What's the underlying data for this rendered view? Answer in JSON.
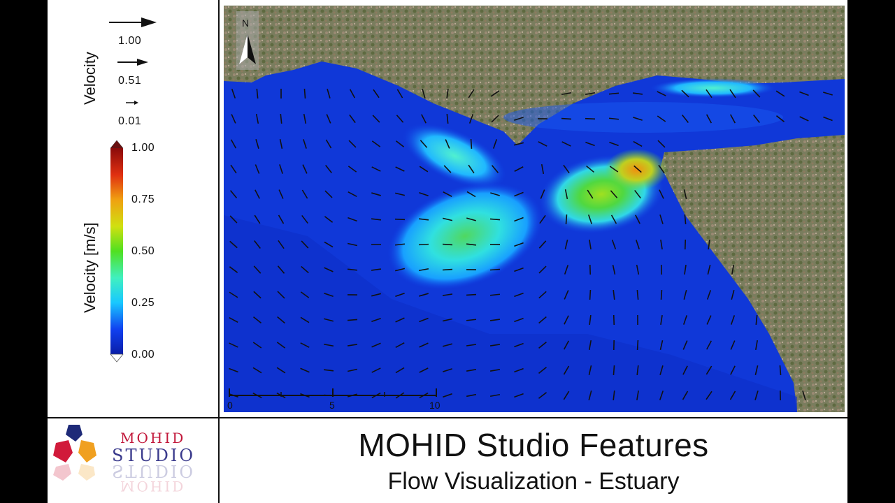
{
  "legend": {
    "vector_title": "Velocity",
    "vector_keys": [
      "1.00",
      "0.51",
      "0.01"
    ],
    "colorbar_title": "Velocity [m/s]",
    "colorbar_ticks": [
      "1.00",
      "0.75",
      "0.50",
      "0.25",
      "0.00"
    ],
    "colorbar_range": [
      0,
      1
    ]
  },
  "map": {
    "north_label": "N",
    "scale_labels": [
      "0",
      "5",
      "10"
    ],
    "water_color_min": "#1030d8",
    "land_color": "#6f7a5a"
  },
  "footer": {
    "title": "MOHID Studio Features",
    "subtitle": "Flow Visualization - Estuary"
  },
  "logo": {
    "line1": "MOHID",
    "line2": "STUDIO",
    "colors": [
      "#1e2a78",
      "#d11a3a",
      "#f0a020"
    ]
  }
}
